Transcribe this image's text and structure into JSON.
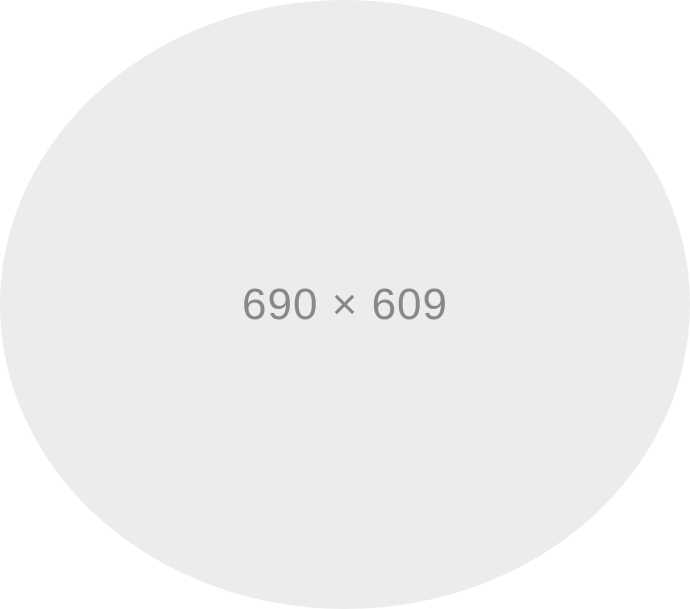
{
  "placeholder": {
    "label": "690 × 609",
    "fill_color": "#ececec",
    "text_color": "#888888",
    "background_color": "#ffffff"
  }
}
